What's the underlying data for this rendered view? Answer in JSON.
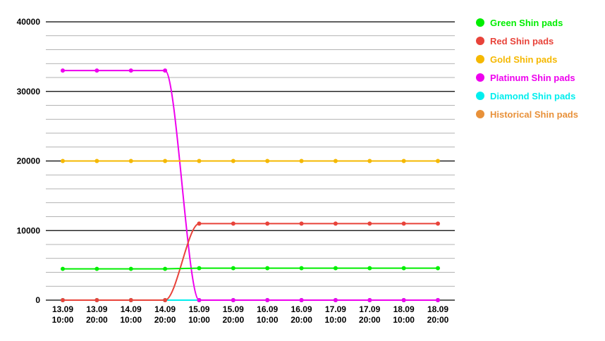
{
  "chart_data": {
    "type": "line",
    "title": "",
    "xlabel": "",
    "ylabel": "",
    "ylim": [
      0,
      40000
    ],
    "yticks": [
      "0",
      "10000",
      "20000",
      "30000",
      "40000"
    ],
    "grid": true,
    "legend_position": "right",
    "categories": [
      [
        "13.09",
        "10:00"
      ],
      [
        "13.09",
        "20:00"
      ],
      [
        "14.09",
        "10:00"
      ],
      [
        "14.09",
        "20:00"
      ],
      [
        "15.09",
        "10:00"
      ],
      [
        "15.09",
        "20:00"
      ],
      [
        "16.09",
        "10:00"
      ],
      [
        "16.09",
        "20:00"
      ],
      [
        "17.09",
        "10:00"
      ],
      [
        "17.09",
        "20:00"
      ],
      [
        "18.09",
        "10:00"
      ],
      [
        "18.09",
        "20:00"
      ]
    ],
    "series": [
      {
        "name": "Green Shin pads",
        "color": "#00ee00",
        "values": [
          4500,
          4500,
          4500,
          4500,
          4600,
          4600,
          4600,
          4600,
          4600,
          4600,
          4600,
          4600
        ]
      },
      {
        "name": "Red Shin pads",
        "color": "#e8433a",
        "values": [
          0,
          0,
          0,
          0,
          11000,
          11000,
          11000,
          11000,
          11000,
          11000,
          11000,
          11000
        ]
      },
      {
        "name": "Gold Shin pads",
        "color": "#f5b800",
        "values": [
          20000,
          20000,
          20000,
          20000,
          20000,
          20000,
          20000,
          20000,
          20000,
          20000,
          20000,
          20000
        ]
      },
      {
        "name": "Platinum Shin pads",
        "color": "#ee00ee",
        "values": [
          33000,
          33000,
          33000,
          33000,
          0,
          0,
          0,
          0,
          0,
          0,
          0,
          0
        ]
      },
      {
        "name": "Diamond Shin pads",
        "color": "#00eeee",
        "values": [
          0,
          0,
          0,
          0,
          0,
          0,
          0,
          0,
          0,
          0,
          0,
          0
        ]
      },
      {
        "name": "Historical Shin pads",
        "color": "#e8913a",
        "values": [
          0,
          0,
          0,
          0,
          0,
          0,
          0,
          0,
          0,
          0,
          0,
          0
        ]
      }
    ]
  }
}
